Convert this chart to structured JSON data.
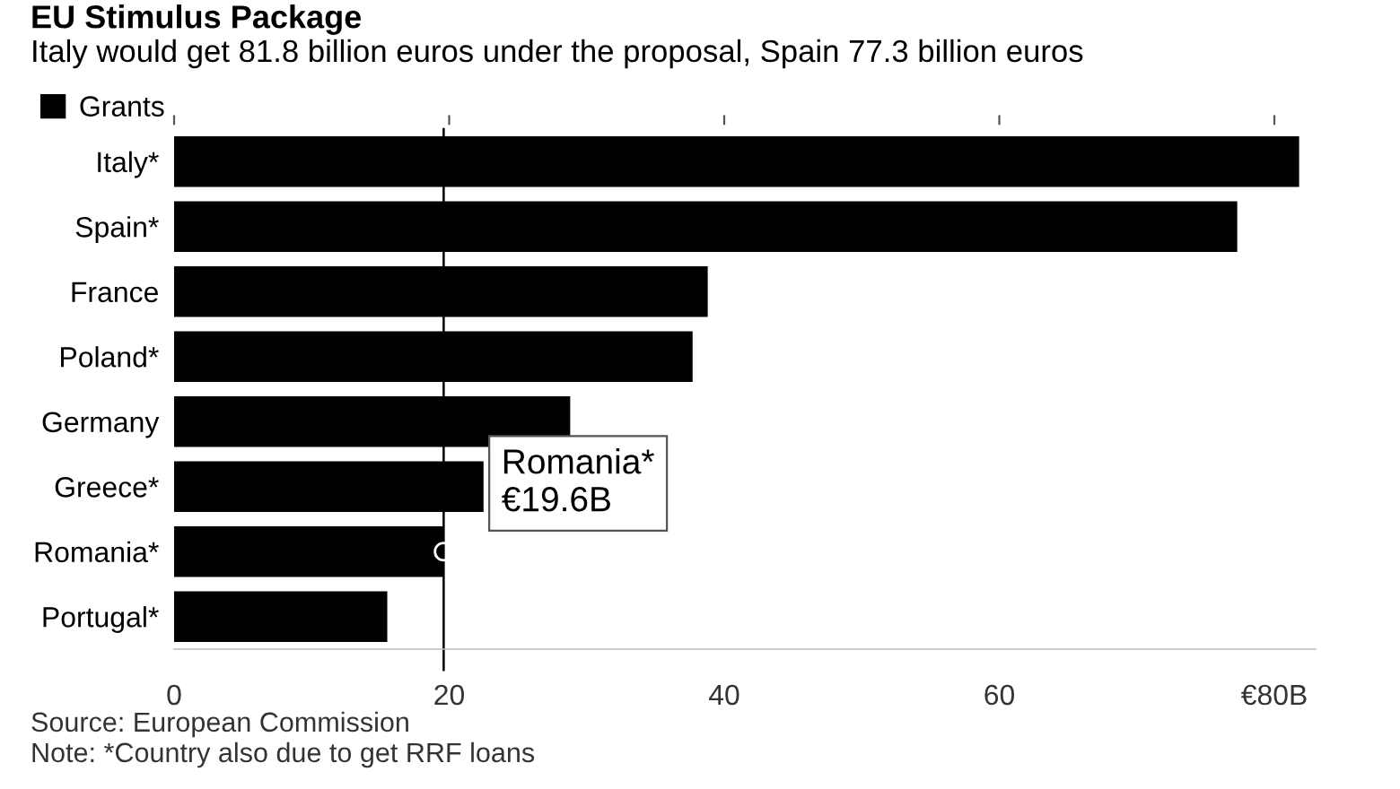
{
  "chart_data": {
    "type": "bar",
    "orientation": "horizontal",
    "title": "EU Stimulus Package",
    "subtitle": "Italy would get 81.8 billion euros under the proposal, Spain 77.3 billion euros",
    "categories": [
      "Italy*",
      "Spain*",
      "France",
      "Poland*",
      "Germany",
      "Greece*",
      "Romania*",
      "Portugal*"
    ],
    "series": [
      {
        "name": "Grants",
        "color": "#000000",
        "values": [
          81.8,
          77.3,
          38.8,
          37.7,
          28.8,
          22.5,
          19.6,
          15.5
        ]
      }
    ],
    "xlim": [
      0,
      83
    ],
    "xticks": [
      0,
      20,
      40,
      60,
      {
        "value": 80,
        "label": "€80B"
      }
    ],
    "ref_lines": [
      {
        "axis": "x",
        "value": 19.6,
        "color": "#000000",
        "line_style": "solid"
      }
    ],
    "annotations": [
      {
        "text": "Romania*\n€19.6B",
        "x": 19.6,
        "y": "Romania*"
      },
      "Source: European Commission",
      "Note: *Country also due to get RRF loans"
    ],
    "legend": "top left",
    "grid": false
  }
}
